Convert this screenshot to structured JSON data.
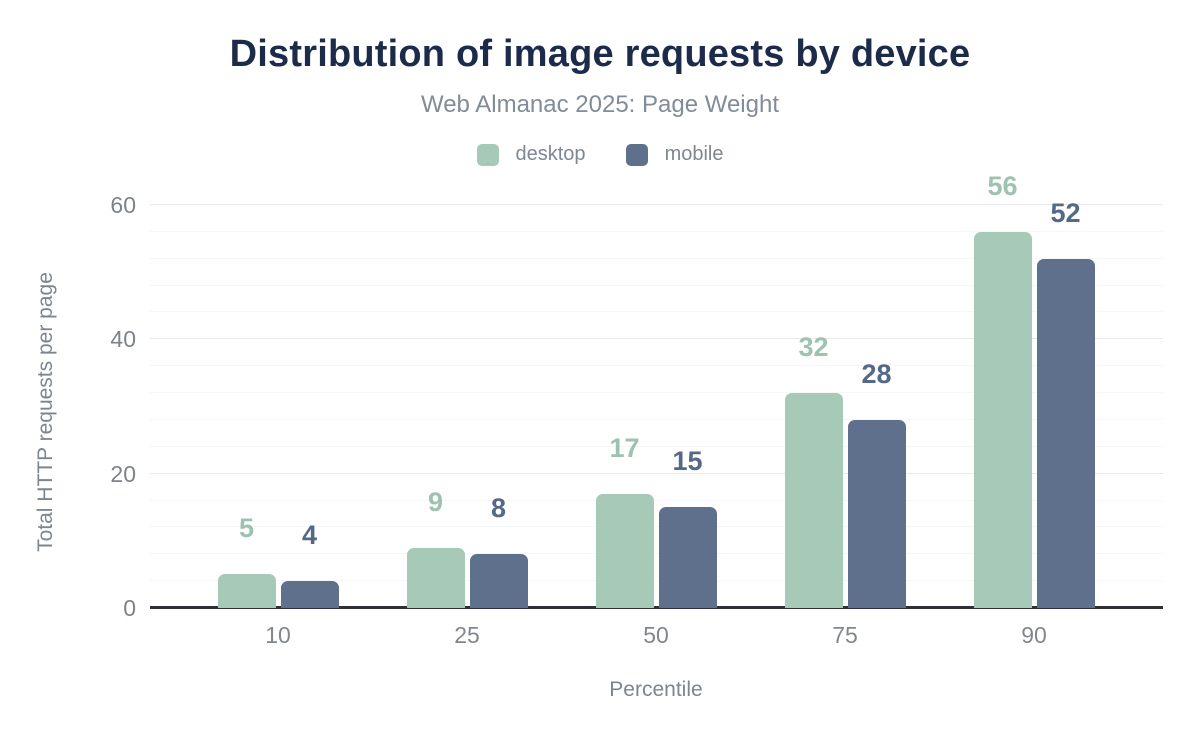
{
  "header": {
    "title": "Distribution of image requests by device",
    "subtitle": "Web Almanac 2025: Page Weight"
  },
  "legend": {
    "items": [
      {
        "label": "desktop",
        "color": "#a6c9b8"
      },
      {
        "label": "mobile",
        "color": "#5f708c"
      }
    ]
  },
  "chart_data": {
    "type": "bar",
    "title": "Distribution of image requests by device",
    "subtitle": "Web Almanac 2025: Page Weight",
    "categories": [
      "10",
      "25",
      "50",
      "75",
      "90"
    ],
    "series": [
      {
        "name": "desktop",
        "color": "#a6c9b8",
        "label_color": "#9dc3b0",
        "values": [
          5,
          9,
          17,
          32,
          56
        ]
      },
      {
        "name": "mobile",
        "color": "#5f708c",
        "label_color": "#54698a",
        "values": [
          4,
          8,
          15,
          28,
          52
        ]
      }
    ],
    "xlabel": "Percentile",
    "ylabel": "Total HTTP requests per page",
    "ylim": [
      0,
      60
    ],
    "yticks": [
      0,
      20,
      40,
      60
    ],
    "minor_gridline_step": 4,
    "grid": "horizontal",
    "legend_position": "top",
    "bar_value_labels": true
  }
}
